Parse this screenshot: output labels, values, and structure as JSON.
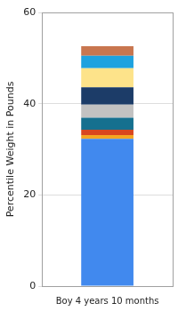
{
  "chart_data": {
    "type": "bar",
    "stacked": true,
    "y_label": "Percentile Weight in Pounds",
    "categories": [
      "Boy 4 years 10 months"
    ],
    "series": [
      {
        "color": "#4189ee",
        "values": [
          32.3
        ]
      },
      {
        "color": "#f5a623",
        "values": [
          0.8
        ]
      },
      {
        "color": "#d9471f",
        "values": [
          1.2
        ]
      },
      {
        "color": "#15708f",
        "values": [
          2.6
        ]
      },
      {
        "color": "#c2c2c2",
        "values": [
          2.9
        ]
      },
      {
        "color": "#1c3c68",
        "values": [
          3.8
        ]
      },
      {
        "color": "#fde38a",
        "values": [
          4.2
        ]
      },
      {
        "color": "#1ea2df",
        "values": [
          2.7
        ]
      },
      {
        "color": "#c8764f",
        "values": [
          2.1
        ]
      }
    ],
    "ylim": [
      0,
      60
    ],
    "yticks": [
      0,
      20,
      40,
      60
    ],
    "grid": true
  }
}
